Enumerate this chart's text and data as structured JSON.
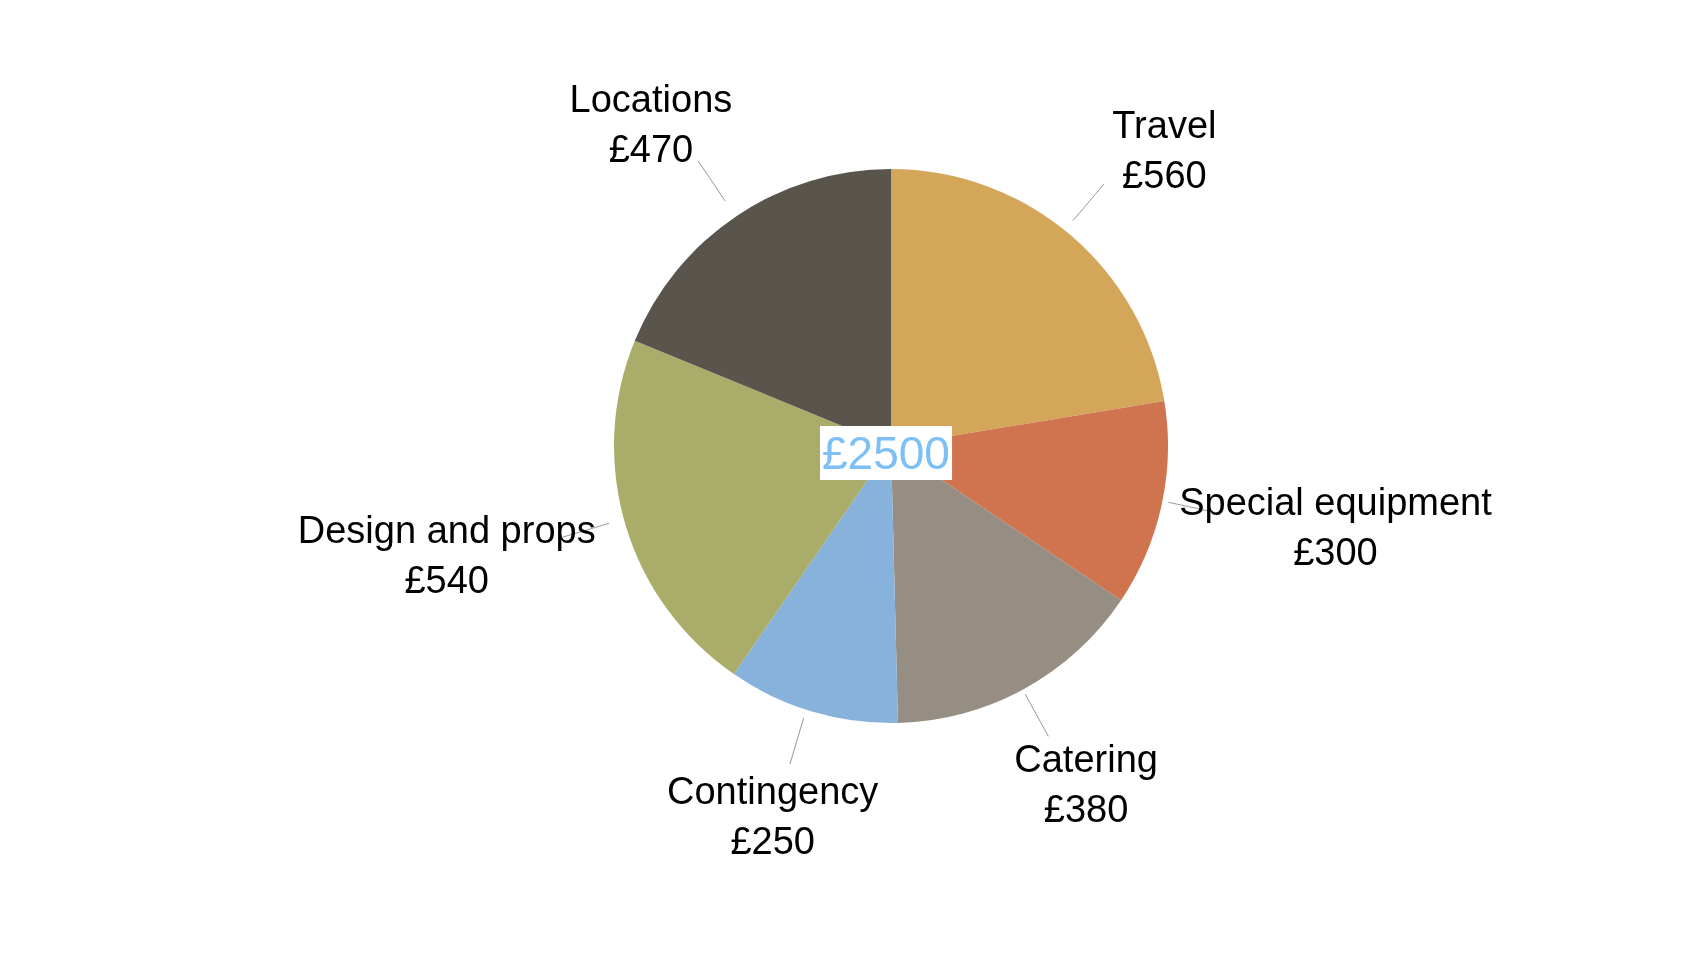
{
  "chart_data": {
    "type": "pie",
    "categories": [
      "Travel",
      "Special equipment",
      "Catering",
      "Contingency",
      "Design and props",
      "Locations"
    ],
    "values": [
      560,
      300,
      380,
      250,
      540,
      470
    ],
    "value_labels": [
      "£560",
      "£300",
      "£380",
      "£250",
      "£540",
      "£470"
    ],
    "colors": [
      "#d4a65a",
      "#d07450",
      "#968e82",
      "#87b2dc",
      "#aaac6a",
      "#59554d"
    ],
    "annotations": [
      "£2500"
    ],
    "legend": false
  }
}
